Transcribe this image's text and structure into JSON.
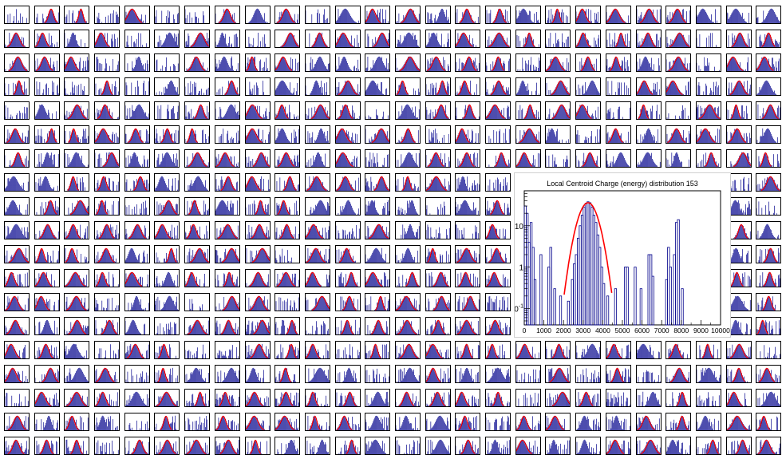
{
  "overview_grid": {
    "columns": 26,
    "rows": 19,
    "hist_color": "#00008b",
    "fit_color": "#ff0000"
  },
  "chart_data": {
    "type": "histogram",
    "title": "Local Centroid Charge (energy) distribution 153",
    "xlabel": "",
    "ylabel": "",
    "xlim": [
      0,
      10000
    ],
    "ylim": [
      0.04,
      70
    ],
    "log_y": true,
    "grid": false,
    "x_tick_labels": [
      "0",
      "1000",
      "2000",
      "3000",
      "4000",
      "5000",
      "6000",
      "7000",
      "8000",
      "9000",
      "10000"
    ],
    "y_tick_labels": [
      "10^-1",
      "1",
      "10"
    ],
    "bin_width": 100,
    "series": [
      {
        "kind": "histogram",
        "color": "#00008b",
        "bins": [
          [
            0,
            30
          ],
          [
            100,
            20
          ],
          [
            200,
            4
          ],
          [
            300,
            12
          ],
          [
            400,
            3
          ],
          [
            500,
            0.5
          ],
          [
            800,
            2
          ],
          [
            1200,
            1
          ],
          [
            1300,
            3
          ],
          [
            1500,
            0.3
          ],
          [
            1800,
            0.2
          ],
          [
            2200,
            0.15
          ],
          [
            2400,
            0.5
          ],
          [
            2500,
            1.2
          ],
          [
            2600,
            2
          ],
          [
            2700,
            5
          ],
          [
            2800,
            10
          ],
          [
            2900,
            18
          ],
          [
            3000,
            28
          ],
          [
            3100,
            35
          ],
          [
            3200,
            38
          ],
          [
            3300,
            36
          ],
          [
            3400,
            28
          ],
          [
            3500,
            18
          ],
          [
            3600,
            12
          ],
          [
            3700,
            6
          ],
          [
            3800,
            3
          ],
          [
            3900,
            1
          ],
          [
            4000,
            0.4
          ],
          [
            4200,
            0.2
          ],
          [
            4600,
            0.3
          ],
          [
            5100,
            1
          ],
          [
            5200,
            1
          ],
          [
            5600,
            1
          ],
          [
            5900,
            0.3
          ],
          [
            6300,
            2
          ],
          [
            6400,
            2
          ],
          [
            6500,
            0.6
          ],
          [
            7200,
            0.5
          ],
          [
            7300,
            3
          ],
          [
            7400,
            1
          ],
          [
            7600,
            2
          ],
          [
            7700,
            12
          ],
          [
            7800,
            14
          ],
          [
            8000,
            0.3
          ]
        ]
      },
      {
        "kind": "gaussian_fit",
        "color": "#ff0000",
        "amplitude": 36,
        "mean": 3250,
        "sigma": 380
      }
    ]
  }
}
